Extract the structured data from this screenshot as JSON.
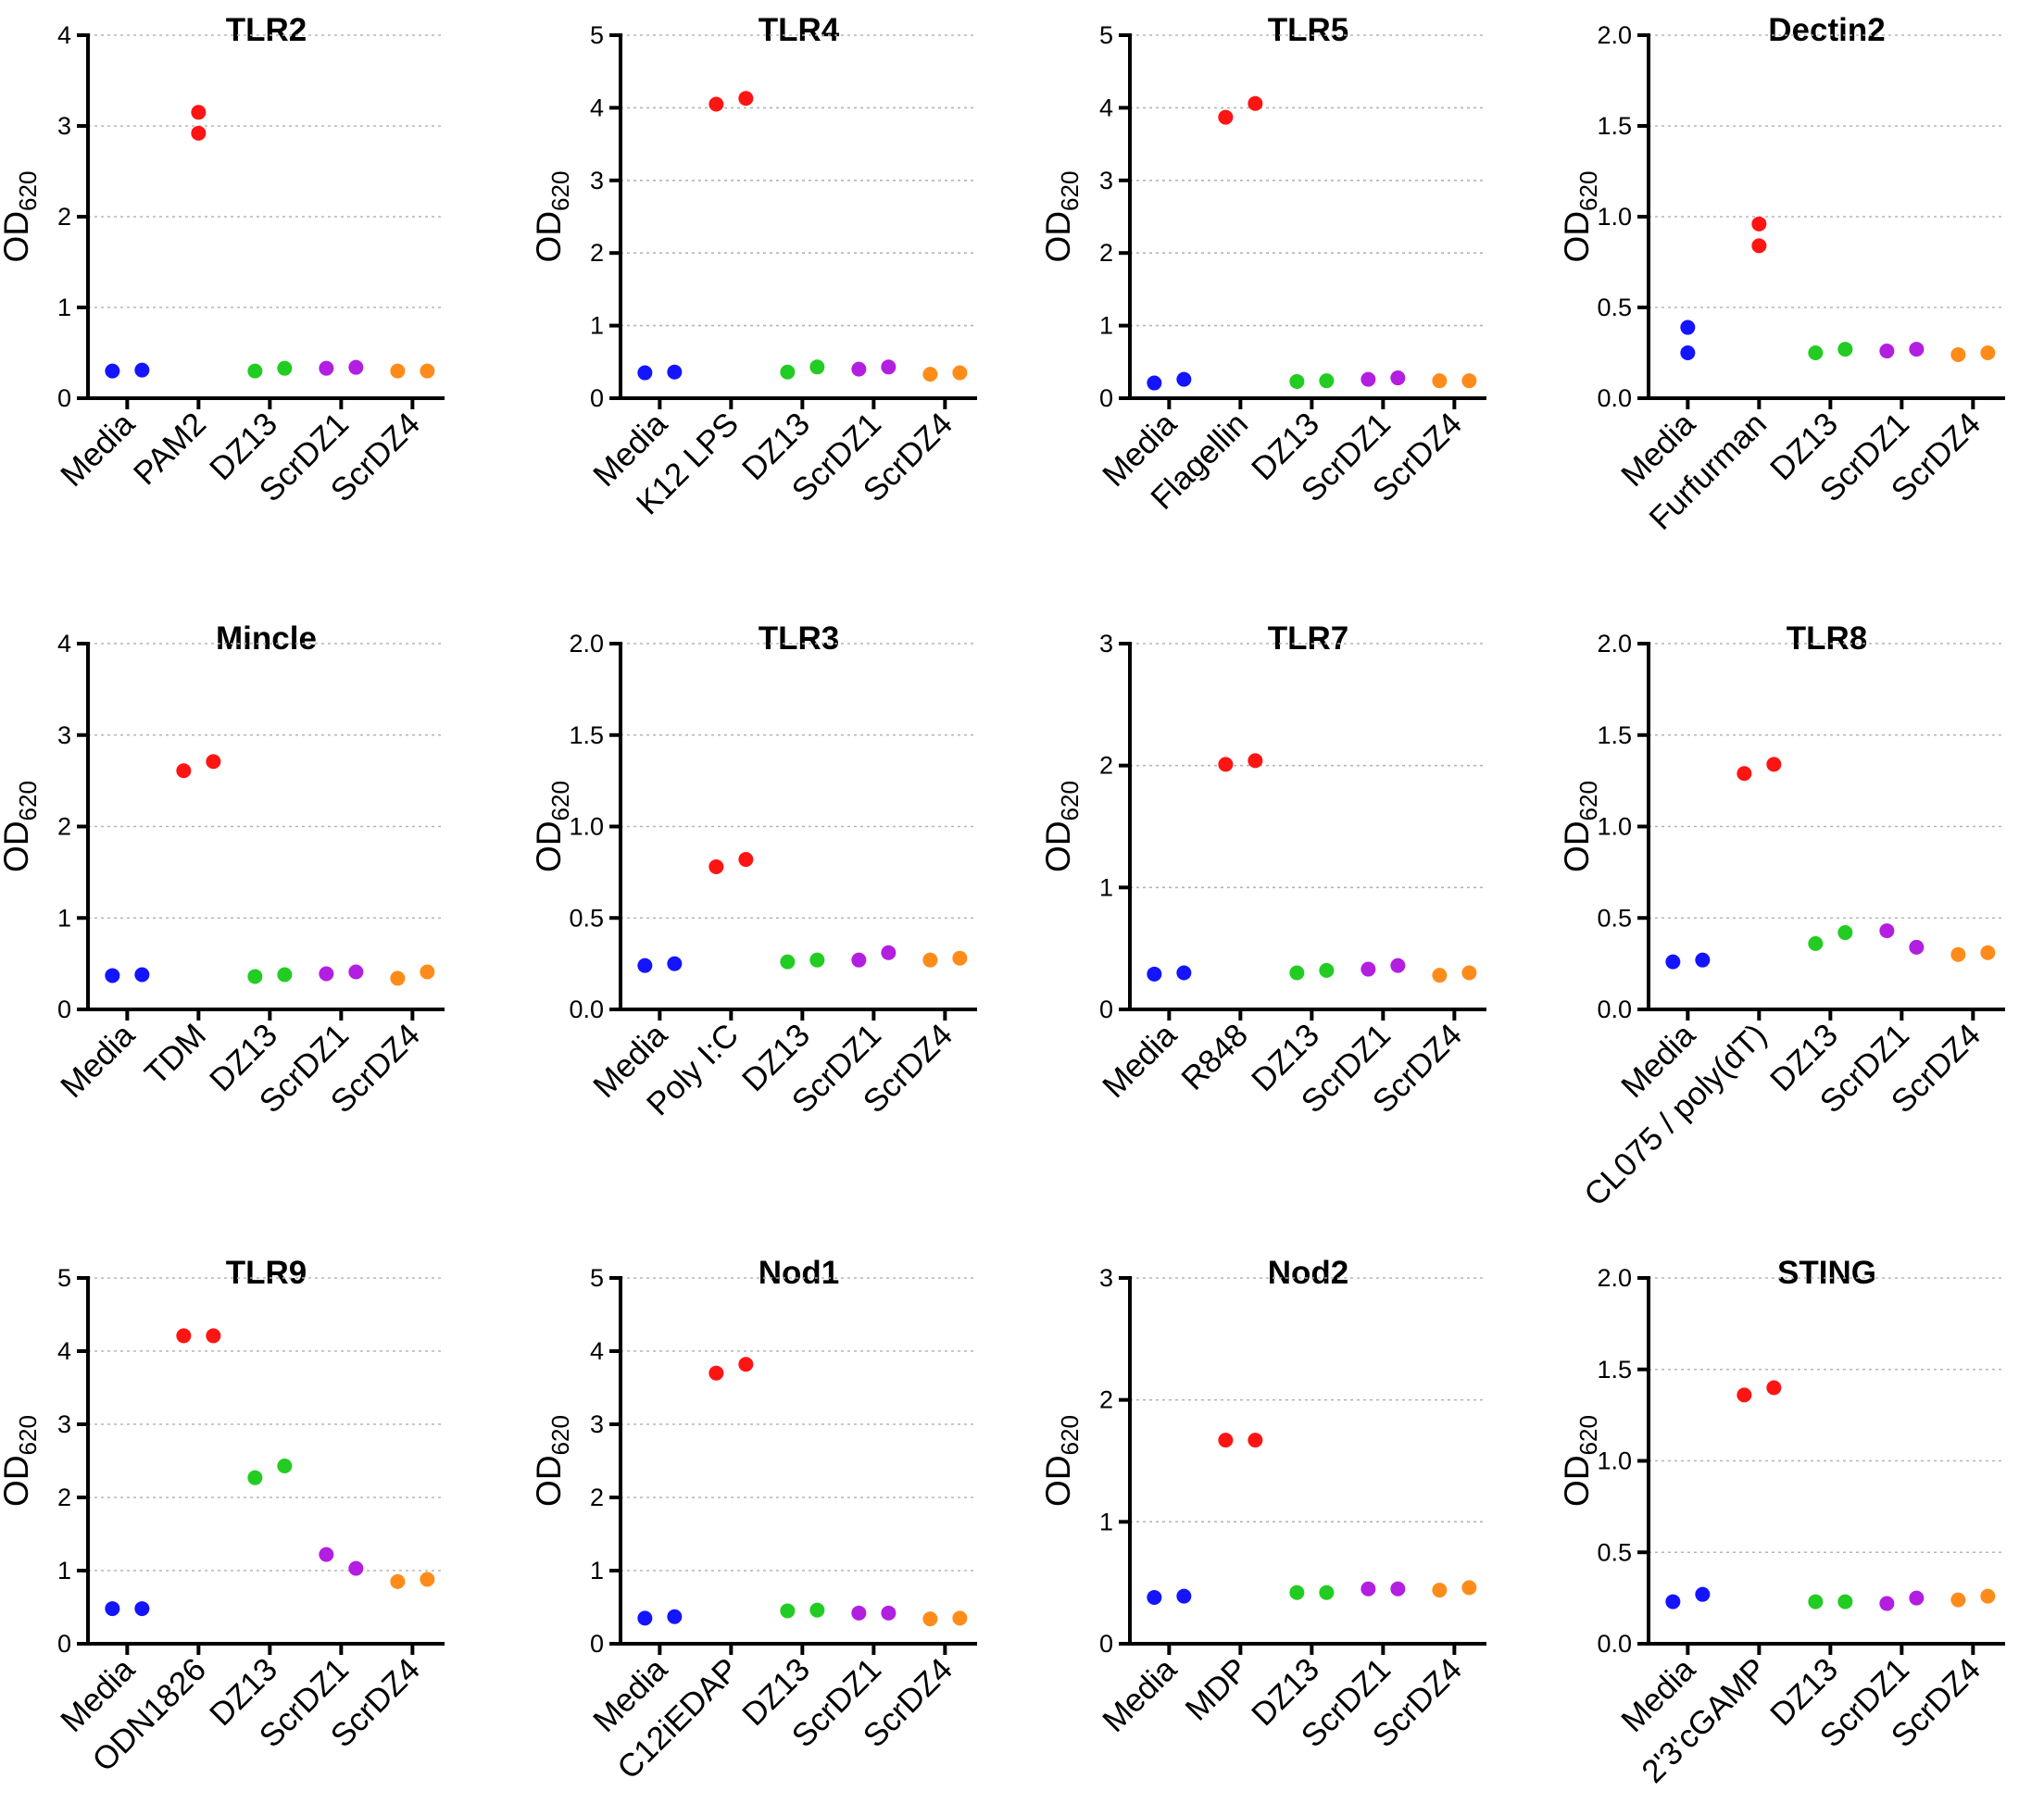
{
  "figure": {
    "type": "scatter",
    "panel_count": 12
  },
  "colors": {
    "Media": "#1414ff",
    "stimulus": "#ff1414",
    "DZ13": "#22cc22",
    "ScrDZ1": "#b21fe0",
    "ScrDZ4": "#ff8c1a"
  },
  "chart_data": [
    {
      "type": "scatter",
      "title": "TLR2",
      "ylabel": "OD",
      "ylabel_sub": "620",
      "ylim": [
        0,
        4
      ],
      "yticks": [
        "0",
        "1",
        "2",
        "3",
        "4"
      ],
      "grid": true,
      "categories": [
        "Media",
        "PAM2",
        "DZ13",
        "ScrDZ1",
        "ScrDZ4"
      ],
      "series": [
        {
          "name": "rep1",
          "values": [
            0.3,
            2.92,
            0.3,
            0.33,
            0.3
          ]
        },
        {
          "name": "rep2",
          "values": [
            0.31,
            3.15,
            0.33,
            0.34,
            0.3
          ]
        }
      ]
    },
    {
      "type": "scatter",
      "title": "TLR4",
      "ylabel": "OD",
      "ylabel_sub": "620",
      "ylim": [
        0,
        5
      ],
      "yticks": [
        "0",
        "1",
        "2",
        "3",
        "4",
        "5"
      ],
      "grid": true,
      "categories": [
        "Media",
        "K12 LPS",
        "DZ13",
        "ScrDZ1",
        "ScrDZ4"
      ],
      "series": [
        {
          "name": "rep1",
          "values": [
            0.35,
            4.05,
            0.36,
            0.4,
            0.33
          ]
        },
        {
          "name": "rep2",
          "values": [
            0.36,
            4.13,
            0.43,
            0.43,
            0.35
          ]
        }
      ]
    },
    {
      "type": "scatter",
      "title": "TLR5",
      "ylabel": "OD",
      "ylabel_sub": "620",
      "ylim": [
        0,
        5
      ],
      "yticks": [
        "0",
        "1",
        "2",
        "3",
        "4",
        "5"
      ],
      "grid": true,
      "categories": [
        "Media",
        "Flagellin",
        "DZ13",
        "ScrDZ1",
        "ScrDZ4"
      ],
      "series": [
        {
          "name": "rep1",
          "values": [
            0.21,
            3.87,
            0.23,
            0.26,
            0.24
          ]
        },
        {
          "name": "rep2",
          "values": [
            0.26,
            4.06,
            0.24,
            0.28,
            0.24
          ]
        }
      ]
    },
    {
      "type": "scatter",
      "title": "Dectin2",
      "ylabel": "OD",
      "ylabel_sub": "620",
      "ylim": [
        0,
        2
      ],
      "yticks": [
        "0.0",
        "0.5",
        "1.0",
        "1.5",
        "2.0"
      ],
      "grid": true,
      "categories": [
        "Media",
        "Furfurman",
        "DZ13",
        "ScrDZ1",
        "ScrDZ4"
      ],
      "series": [
        {
          "name": "rep1",
          "values": [
            0.39,
            0.84,
            0.25,
            0.26,
            0.24
          ]
        },
        {
          "name": "rep2",
          "values": [
            0.25,
            0.96,
            0.27,
            0.27,
            0.25
          ]
        }
      ]
    },
    {
      "type": "scatter",
      "title": "Mincle",
      "ylabel": "OD",
      "ylabel_sub": "620",
      "ylim": [
        0,
        4
      ],
      "yticks": [
        "0",
        "1",
        "2",
        "3",
        "4"
      ],
      "grid": true,
      "categories": [
        "Media",
        "TDM",
        "DZ13",
        "ScrDZ1",
        "ScrDZ4"
      ],
      "series": [
        {
          "name": "rep1",
          "values": [
            0.37,
            2.61,
            0.36,
            0.39,
            0.34
          ]
        },
        {
          "name": "rep2",
          "values": [
            0.38,
            2.71,
            0.38,
            0.41,
            0.41
          ]
        }
      ]
    },
    {
      "type": "scatter",
      "title": "TLR3",
      "ylabel": "OD",
      "ylabel_sub": "620",
      "ylim": [
        0,
        2
      ],
      "yticks": [
        "0.0",
        "0.5",
        "1.0",
        "1.5",
        "2.0"
      ],
      "grid": true,
      "categories": [
        "Media",
        "Poly I:C",
        "DZ13",
        "ScrDZ1",
        "ScrDZ4"
      ],
      "series": [
        {
          "name": "rep1",
          "values": [
            0.24,
            0.78,
            0.26,
            0.27,
            0.27
          ]
        },
        {
          "name": "rep2",
          "values": [
            0.25,
            0.82,
            0.27,
            0.31,
            0.28
          ]
        }
      ]
    },
    {
      "type": "scatter",
      "title": "TLR7",
      "ylabel": "OD",
      "ylabel_sub": "620",
      "ylim": [
        0,
        3
      ],
      "yticks": [
        "0",
        "1",
        "2",
        "3"
      ],
      "grid": true,
      "categories": [
        "Media",
        "R848",
        "DZ13",
        "ScrDZ1",
        "ScrDZ4"
      ],
      "series": [
        {
          "name": "rep1",
          "values": [
            0.29,
            2.01,
            0.3,
            0.33,
            0.28
          ]
        },
        {
          "name": "rep2",
          "values": [
            0.3,
            2.04,
            0.32,
            0.36,
            0.3
          ]
        }
      ]
    },
    {
      "type": "scatter",
      "title": "TLR8",
      "ylabel": "OD",
      "ylabel_sub": "620",
      "ylim": [
        0,
        2
      ],
      "yticks": [
        "0.0",
        "0.5",
        "1.0",
        "1.5",
        "2.0"
      ],
      "grid": true,
      "categories": [
        "Media",
        "CL075 / poly(dT)",
        "DZ13",
        "ScrDZ1",
        "ScrDZ4"
      ],
      "series": [
        {
          "name": "rep1",
          "values": [
            0.26,
            1.29,
            0.36,
            0.43,
            0.3
          ]
        },
        {
          "name": "rep2",
          "values": [
            0.27,
            1.34,
            0.42,
            0.34,
            0.31
          ]
        }
      ]
    },
    {
      "type": "scatter",
      "title": "TLR9",
      "ylabel": "OD",
      "ylabel_sub": "620",
      "ylim": [
        0,
        5
      ],
      "yticks": [
        "0",
        "1",
        "2",
        "3",
        "4",
        "5"
      ],
      "grid": true,
      "categories": [
        "Media",
        "ODN1826",
        "DZ13",
        "ScrDZ1",
        "ScrDZ4"
      ],
      "series": [
        {
          "name": "rep1",
          "values": [
            0.48,
            4.21,
            2.27,
            1.22,
            0.85
          ]
        },
        {
          "name": "rep2",
          "values": [
            0.48,
            4.21,
            2.43,
            1.03,
            0.88
          ]
        }
      ]
    },
    {
      "type": "scatter",
      "title": "Nod1",
      "ylabel": "OD",
      "ylabel_sub": "620",
      "ylim": [
        0,
        5
      ],
      "yticks": [
        "0",
        "1",
        "2",
        "3",
        "4",
        "5"
      ],
      "grid": true,
      "categories": [
        "Media",
        "C12iEDAP",
        "DZ13",
        "ScrDZ1",
        "ScrDZ4"
      ],
      "series": [
        {
          "name": "rep1",
          "values": [
            0.35,
            3.7,
            0.45,
            0.42,
            0.34
          ]
        },
        {
          "name": "rep2",
          "values": [
            0.37,
            3.82,
            0.46,
            0.42,
            0.35
          ]
        }
      ]
    },
    {
      "type": "scatter",
      "title": "Nod2",
      "ylabel": "OD",
      "ylabel_sub": "620",
      "ylim": [
        0,
        3
      ],
      "yticks": [
        "0",
        "1",
        "2",
        "3"
      ],
      "grid": true,
      "categories": [
        "Media",
        "MDP",
        "DZ13",
        "ScrDZ1",
        "ScrDZ4"
      ],
      "series": [
        {
          "name": "rep1",
          "values": [
            0.38,
            1.67,
            0.42,
            0.45,
            0.44
          ]
        },
        {
          "name": "rep2",
          "values": [
            0.39,
            1.67,
            0.42,
            0.45,
            0.46
          ]
        }
      ]
    },
    {
      "type": "scatter",
      "title": "STING",
      "ylabel": "OD",
      "ylabel_sub": "620",
      "ylim": [
        0,
        2
      ],
      "yticks": [
        "0.0",
        "0.5",
        "1.0",
        "1.5",
        "2.0"
      ],
      "grid": true,
      "categories": [
        "Media",
        "2'3'cGAMP",
        "DZ13",
        "ScrDZ1",
        "ScrDZ4"
      ],
      "series": [
        {
          "name": "rep1",
          "values": [
            0.23,
            1.36,
            0.23,
            0.22,
            0.24
          ]
        },
        {
          "name": "rep2",
          "values": [
            0.27,
            1.4,
            0.23,
            0.25,
            0.26
          ]
        }
      ]
    }
  ]
}
